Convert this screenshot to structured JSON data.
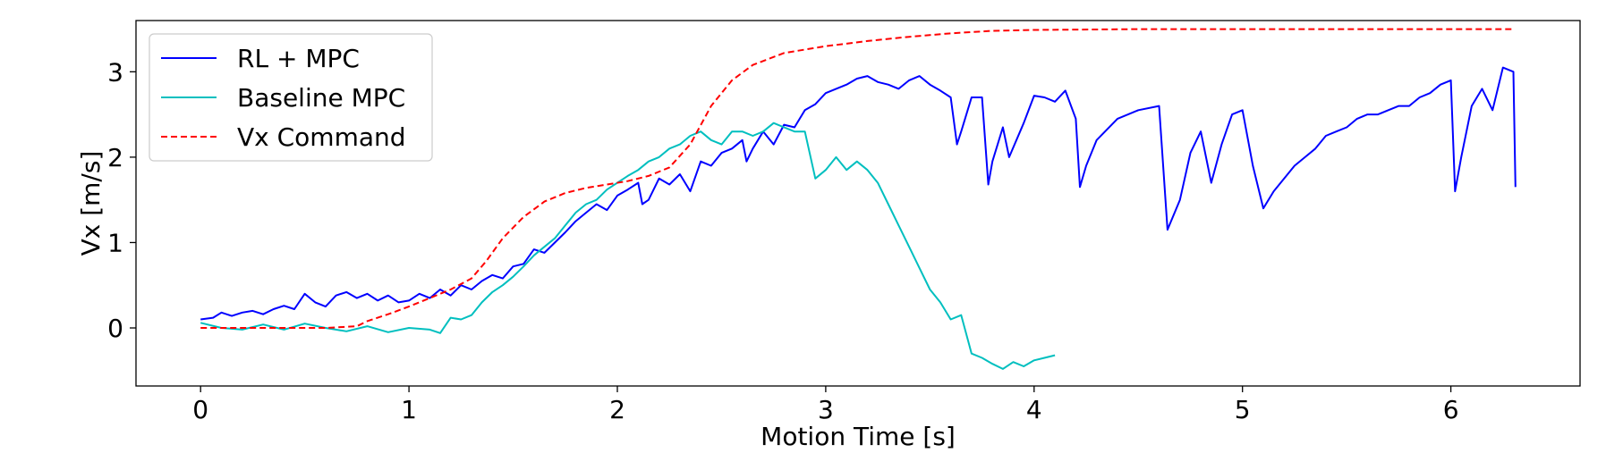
{
  "chart_data": {
    "type": "line",
    "title": "",
    "xlabel": "Motion Time [s]",
    "ylabel": "Vx [m/s]",
    "xlim": [
      -0.31,
      6.62
    ],
    "ylim": [
      -0.68,
      3.6
    ],
    "xticks": [
      0,
      1,
      2,
      3,
      4,
      5,
      6
    ],
    "yticks": [
      0,
      1,
      2,
      3
    ],
    "grid": false,
    "legend_position": "top-left",
    "series": [
      {
        "name": "RL + MPC",
        "color": "#0000ff",
        "style": "solid",
        "points": [
          [
            0.0,
            0.1
          ],
          [
            0.06,
            0.12
          ],
          [
            0.1,
            0.18
          ],
          [
            0.15,
            0.14
          ],
          [
            0.2,
            0.18
          ],
          [
            0.25,
            0.2
          ],
          [
            0.3,
            0.16
          ],
          [
            0.35,
            0.22
          ],
          [
            0.4,
            0.26
          ],
          [
            0.45,
            0.22
          ],
          [
            0.5,
            0.4
          ],
          [
            0.55,
            0.3
          ],
          [
            0.6,
            0.25
          ],
          [
            0.65,
            0.38
          ],
          [
            0.7,
            0.42
          ],
          [
            0.75,
            0.35
          ],
          [
            0.8,
            0.4
          ],
          [
            0.85,
            0.32
          ],
          [
            0.9,
            0.38
          ],
          [
            0.95,
            0.3
          ],
          [
            1.0,
            0.32
          ],
          [
            1.05,
            0.4
          ],
          [
            1.1,
            0.35
          ],
          [
            1.15,
            0.45
          ],
          [
            1.2,
            0.38
          ],
          [
            1.25,
            0.5
          ],
          [
            1.3,
            0.45
          ],
          [
            1.35,
            0.55
          ],
          [
            1.4,
            0.62
          ],
          [
            1.45,
            0.58
          ],
          [
            1.5,
            0.72
          ],
          [
            1.55,
            0.75
          ],
          [
            1.6,
            0.92
          ],
          [
            1.65,
            0.88
          ],
          [
            1.7,
            1.0
          ],
          [
            1.75,
            1.12
          ],
          [
            1.8,
            1.25
          ],
          [
            1.85,
            1.35
          ],
          [
            1.9,
            1.45
          ],
          [
            1.95,
            1.38
          ],
          [
            2.0,
            1.55
          ],
          [
            2.05,
            1.62
          ],
          [
            2.1,
            1.7
          ],
          [
            2.12,
            1.45
          ],
          [
            2.15,
            1.5
          ],
          [
            2.2,
            1.75
          ],
          [
            2.25,
            1.68
          ],
          [
            2.3,
            1.8
          ],
          [
            2.35,
            1.6
          ],
          [
            2.4,
            1.95
          ],
          [
            2.45,
            1.9
          ],
          [
            2.5,
            2.05
          ],
          [
            2.55,
            2.1
          ],
          [
            2.6,
            2.2
          ],
          [
            2.62,
            1.95
          ],
          [
            2.65,
            2.1
          ],
          [
            2.7,
            2.3
          ],
          [
            2.75,
            2.15
          ],
          [
            2.8,
            2.38
          ],
          [
            2.85,
            2.35
          ],
          [
            2.9,
            2.55
          ],
          [
            2.95,
            2.62
          ],
          [
            3.0,
            2.75
          ],
          [
            3.05,
            2.8
          ],
          [
            3.1,
            2.85
          ],
          [
            3.15,
            2.92
          ],
          [
            3.2,
            2.95
          ],
          [
            3.25,
            2.88
          ],
          [
            3.3,
            2.85
          ],
          [
            3.35,
            2.8
          ],
          [
            3.4,
            2.9
          ],
          [
            3.45,
            2.95
          ],
          [
            3.5,
            2.85
          ],
          [
            3.55,
            2.78
          ],
          [
            3.6,
            2.7
          ],
          [
            3.63,
            2.15
          ],
          [
            3.65,
            2.3
          ],
          [
            3.7,
            2.7
          ],
          [
            3.75,
            2.7
          ],
          [
            3.78,
            1.68
          ],
          [
            3.8,
            1.95
          ],
          [
            3.85,
            2.35
          ],
          [
            3.88,
            2.0
          ],
          [
            3.95,
            2.4
          ],
          [
            4.0,
            2.72
          ],
          [
            4.05,
            2.7
          ],
          [
            4.1,
            2.65
          ],
          [
            4.15,
            2.78
          ],
          [
            4.2,
            2.45
          ],
          [
            4.22,
            1.65
          ],
          [
            4.25,
            1.9
          ],
          [
            4.3,
            2.2
          ],
          [
            4.4,
            2.45
          ],
          [
            4.5,
            2.55
          ],
          [
            4.6,
            2.6
          ],
          [
            4.64,
            1.15
          ],
          [
            4.7,
            1.5
          ],
          [
            4.75,
            2.05
          ],
          [
            4.8,
            2.3
          ],
          [
            4.85,
            1.7
          ],
          [
            4.9,
            2.15
          ],
          [
            4.95,
            2.5
          ],
          [
            5.0,
            2.55
          ],
          [
            5.05,
            1.9
          ],
          [
            5.1,
            1.4
          ],
          [
            5.15,
            1.6
          ],
          [
            5.2,
            1.75
          ],
          [
            5.25,
            1.9
          ],
          [
            5.3,
            2.0
          ],
          [
            5.35,
            2.1
          ],
          [
            5.4,
            2.25
          ],
          [
            5.45,
            2.3
          ],
          [
            5.5,
            2.35
          ],
          [
            5.55,
            2.45
          ],
          [
            5.6,
            2.5
          ],
          [
            5.65,
            2.5
          ],
          [
            5.7,
            2.55
          ],
          [
            5.75,
            2.6
          ],
          [
            5.8,
            2.6
          ],
          [
            5.85,
            2.7
          ],
          [
            5.9,
            2.75
          ],
          [
            5.95,
            2.85
          ],
          [
            6.0,
            2.9
          ],
          [
            6.02,
            1.6
          ],
          [
            6.05,
            2.0
          ],
          [
            6.1,
            2.6
          ],
          [
            6.15,
            2.8
          ],
          [
            6.2,
            2.55
          ],
          [
            6.25,
            3.05
          ],
          [
            6.3,
            3.0
          ],
          [
            6.31,
            1.65
          ]
        ]
      },
      {
        "name": "Baseline MPC",
        "color": "#00bfbf",
        "style": "solid",
        "points": [
          [
            0.0,
            0.06
          ],
          [
            0.1,
            0.0
          ],
          [
            0.2,
            -0.02
          ],
          [
            0.3,
            0.04
          ],
          [
            0.4,
            -0.02
          ],
          [
            0.5,
            0.05
          ],
          [
            0.6,
            0.0
          ],
          [
            0.7,
            -0.04
          ],
          [
            0.8,
            0.02
          ],
          [
            0.9,
            -0.05
          ],
          [
            1.0,
            0.0
          ],
          [
            1.1,
            -0.02
          ],
          [
            1.15,
            -0.06
          ],
          [
            1.2,
            0.12
          ],
          [
            1.25,
            0.1
          ],
          [
            1.3,
            0.15
          ],
          [
            1.35,
            0.3
          ],
          [
            1.4,
            0.42
          ],
          [
            1.45,
            0.5
          ],
          [
            1.5,
            0.6
          ],
          [
            1.55,
            0.72
          ],
          [
            1.6,
            0.85
          ],
          [
            1.65,
            0.95
          ],
          [
            1.7,
            1.05
          ],
          [
            1.75,
            1.2
          ],
          [
            1.8,
            1.35
          ],
          [
            1.85,
            1.45
          ],
          [
            1.9,
            1.5
          ],
          [
            1.95,
            1.62
          ],
          [
            2.0,
            1.7
          ],
          [
            2.05,
            1.78
          ],
          [
            2.1,
            1.85
          ],
          [
            2.15,
            1.95
          ],
          [
            2.2,
            2.0
          ],
          [
            2.25,
            2.1
          ],
          [
            2.3,
            2.15
          ],
          [
            2.35,
            2.25
          ],
          [
            2.4,
            2.3
          ],
          [
            2.45,
            2.2
          ],
          [
            2.5,
            2.15
          ],
          [
            2.55,
            2.3
          ],
          [
            2.6,
            2.3
          ],
          [
            2.65,
            2.25
          ],
          [
            2.7,
            2.3
          ],
          [
            2.75,
            2.4
          ],
          [
            2.8,
            2.35
          ],
          [
            2.85,
            2.3
          ],
          [
            2.9,
            2.3
          ],
          [
            2.95,
            1.75
          ],
          [
            3.0,
            1.85
          ],
          [
            3.05,
            2.0
          ],
          [
            3.1,
            1.85
          ],
          [
            3.15,
            1.95
          ],
          [
            3.2,
            1.85
          ],
          [
            3.25,
            1.7
          ],
          [
            3.3,
            1.45
          ],
          [
            3.35,
            1.2
          ],
          [
            3.4,
            0.95
          ],
          [
            3.45,
            0.7
          ],
          [
            3.5,
            0.45
          ],
          [
            3.55,
            0.3
          ],
          [
            3.6,
            0.1
          ],
          [
            3.65,
            0.15
          ],
          [
            3.7,
            -0.3
          ],
          [
            3.75,
            -0.35
          ],
          [
            3.8,
            -0.42
          ],
          [
            3.85,
            -0.48
          ],
          [
            3.9,
            -0.4
          ],
          [
            3.95,
            -0.45
          ],
          [
            4.0,
            -0.38
          ],
          [
            4.05,
            -0.35
          ],
          [
            4.1,
            -0.32
          ]
        ]
      },
      {
        "name": "Vx Command",
        "color": "#ff0000",
        "style": "dashed",
        "points": [
          [
            0.0,
            0.0
          ],
          [
            0.2,
            0.0
          ],
          [
            0.4,
            0.0
          ],
          [
            0.6,
            0.0
          ],
          [
            0.75,
            0.02
          ],
          [
            0.8,
            0.08
          ],
          [
            0.9,
            0.16
          ],
          [
            1.0,
            0.25
          ],
          [
            1.1,
            0.35
          ],
          [
            1.2,
            0.45
          ],
          [
            1.3,
            0.58
          ],
          [
            1.37,
            0.78
          ],
          [
            1.45,
            1.05
          ],
          [
            1.55,
            1.3
          ],
          [
            1.65,
            1.48
          ],
          [
            1.75,
            1.58
          ],
          [
            1.85,
            1.64
          ],
          [
            1.95,
            1.68
          ],
          [
            2.05,
            1.72
          ],
          [
            2.15,
            1.78
          ],
          [
            2.25,
            1.88
          ],
          [
            2.35,
            2.15
          ],
          [
            2.45,
            2.6
          ],
          [
            2.55,
            2.9
          ],
          [
            2.65,
            3.08
          ],
          [
            2.8,
            3.22
          ],
          [
            3.0,
            3.3
          ],
          [
            3.2,
            3.36
          ],
          [
            3.4,
            3.41
          ],
          [
            3.6,
            3.45
          ],
          [
            3.8,
            3.48
          ],
          [
            4.0,
            3.49
          ],
          [
            4.5,
            3.5
          ],
          [
            5.0,
            3.5
          ],
          [
            5.5,
            3.5
          ],
          [
            6.0,
            3.5
          ],
          [
            6.3,
            3.5
          ]
        ]
      }
    ]
  }
}
